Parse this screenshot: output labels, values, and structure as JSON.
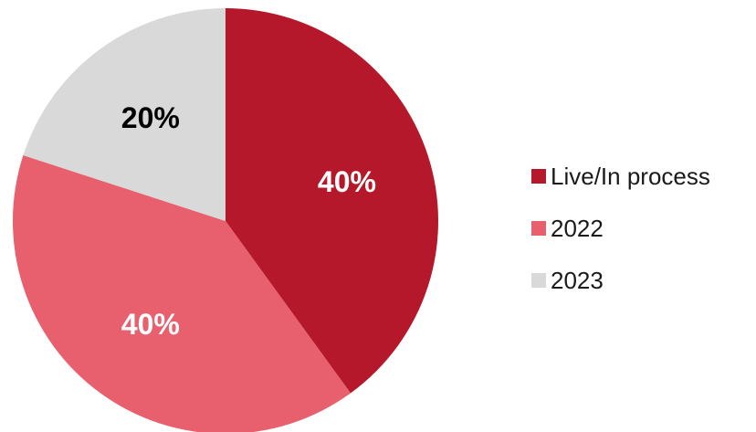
{
  "chart_data": {
    "type": "pie",
    "categories": [
      "Live/In process",
      "2022",
      "2023"
    ],
    "values": [
      40,
      40,
      20
    ],
    "value_labels": [
      "40%",
      "40%",
      "20%"
    ],
    "colors": [
      "#b5182a",
      "#e85f6d",
      "#d9d9d9"
    ],
    "label_colors": [
      "#ffffff",
      "#ffffff",
      "#000000"
    ],
    "start": "12 o'clock",
    "direction": "clockwise",
    "legend_position": "right"
  }
}
